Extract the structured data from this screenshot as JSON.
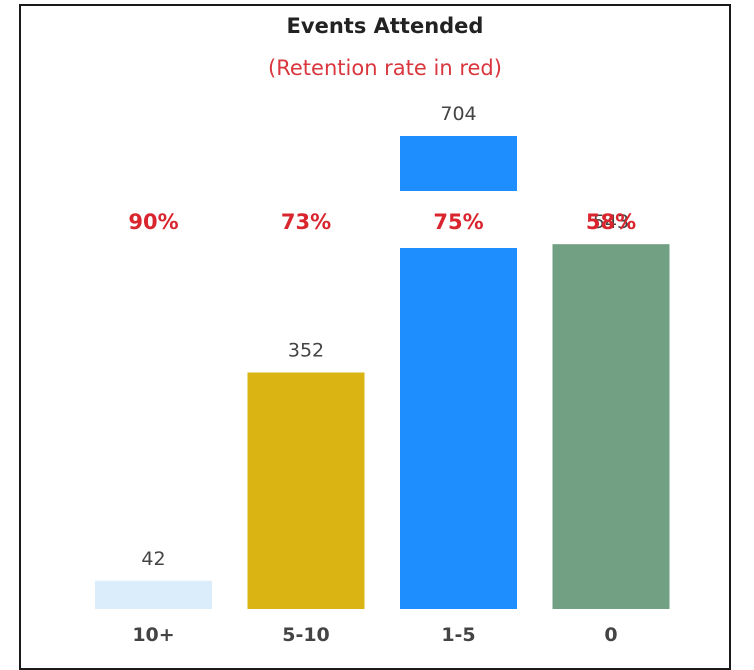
{
  "chart_data": {
    "type": "bar",
    "title": "Events Attended",
    "subtitle": "(Retention rate in red)",
    "categories": [
      "10+",
      "5-10",
      "1-5",
      "0"
    ],
    "values": [
      42,
      352,
      704,
      543
    ],
    "retention_rates": [
      "90%",
      "73%",
      "75%",
      "58%"
    ],
    "colors": [
      "#dbecfb",
      "#d9b412",
      "#1e8eff",
      "#72a083"
    ],
    "rate_color": "#d9262e",
    "xlabel": "",
    "ylabel": "",
    "ylim": [
      0,
      704
    ],
    "grid": false,
    "legend": "none"
  }
}
